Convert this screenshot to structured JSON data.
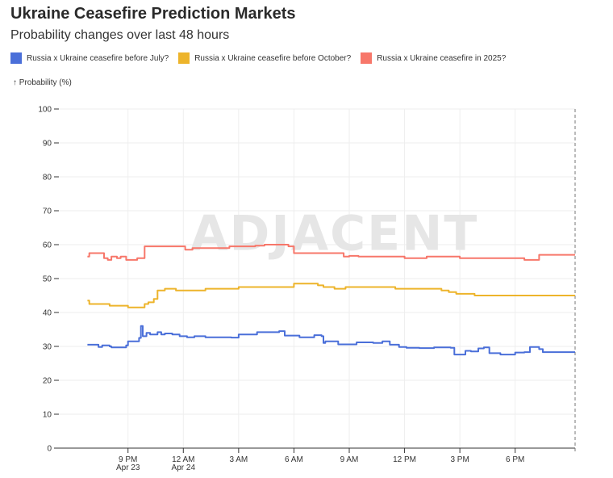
{
  "header": {
    "title": "Ukraine Ceasefire Prediction Markets",
    "subtitle": "Probability changes over last 48 hours"
  },
  "colors": {
    "series_0": "#4a6fd9",
    "series_1": "#edb42b",
    "series_2": "#f7776a",
    "watermark": "#e6e6e6",
    "grid": "#eeeeee"
  },
  "chart_data": {
    "type": "line",
    "title": "Ukraine Ceasefire Prediction Markets",
    "subtitle": "Probability changes over last 48 hours",
    "ylabel": "↑ Probability (%)",
    "xlabel": "",
    "ylim": [
      0,
      100
    ],
    "y_ticks": [
      0,
      10,
      20,
      30,
      40,
      50,
      60,
      70,
      80,
      90,
      100
    ],
    "x_unit": "hours since 9 PM Apr 23",
    "xlim": [
      -3.75,
      24.25
    ],
    "x_ticks": [
      {
        "x": 0,
        "label": "9 PM",
        "sublabel": "Apr 23"
      },
      {
        "x": 3,
        "label": "12 AM",
        "sublabel": "Apr 24"
      },
      {
        "x": 6,
        "label": "3 AM",
        "sublabel": ""
      },
      {
        "x": 9,
        "label": "6 AM",
        "sublabel": ""
      },
      {
        "x": 12,
        "label": "9 AM",
        "sublabel": ""
      },
      {
        "x": 15,
        "label": "12 PM",
        "sublabel": ""
      },
      {
        "x": 18,
        "label": "3 PM",
        "sublabel": ""
      },
      {
        "x": 21,
        "label": "6 PM",
        "sublabel": ""
      }
    ],
    "watermark": "ADJACENT",
    "legend_position": "top-left",
    "series": [
      {
        "name": "Russia x Ukraine ceasefire before July?",
        "color": "#4a6fd9",
        "points": [
          [
            -2.2,
            30.5
          ],
          [
            -1.6,
            29.8
          ],
          [
            -1.4,
            30.3
          ],
          [
            -1.0,
            30.0
          ],
          [
            -0.9,
            29.7
          ],
          [
            -0.1,
            30.3
          ],
          [
            0.0,
            31.5
          ],
          [
            0.3,
            31.5
          ],
          [
            0.6,
            32.5
          ],
          [
            0.7,
            36.0
          ],
          [
            0.8,
            33.0
          ],
          [
            1.0,
            34.0
          ],
          [
            1.2,
            33.5
          ],
          [
            1.6,
            34.2
          ],
          [
            1.8,
            33.5
          ],
          [
            2.0,
            33.8
          ],
          [
            2.4,
            33.5
          ],
          [
            2.8,
            33.0
          ],
          [
            3.2,
            32.7
          ],
          [
            3.6,
            33.0
          ],
          [
            4.2,
            32.7
          ],
          [
            5.6,
            32.6
          ],
          [
            6.0,
            33.5
          ],
          [
            6.5,
            33.5
          ],
          [
            7.0,
            34.2
          ],
          [
            8.2,
            34.5
          ],
          [
            8.5,
            33.2
          ],
          [
            9.3,
            32.7
          ],
          [
            10.1,
            33.3
          ],
          [
            10.5,
            33.0
          ],
          [
            10.6,
            31.0
          ],
          [
            10.7,
            31.5
          ],
          [
            11.4,
            30.6
          ],
          [
            12.2,
            30.6
          ],
          [
            12.4,
            31.2
          ],
          [
            13.3,
            31.0
          ],
          [
            13.8,
            31.5
          ],
          [
            14.2,
            30.5
          ],
          [
            14.7,
            29.8
          ],
          [
            15.1,
            29.6
          ],
          [
            15.8,
            29.5
          ],
          [
            16.6,
            29.7
          ],
          [
            17.5,
            29.6
          ],
          [
            17.7,
            27.6
          ],
          [
            18.3,
            28.7
          ],
          [
            18.6,
            28.5
          ],
          [
            19.0,
            29.4
          ],
          [
            19.3,
            29.7
          ],
          [
            19.6,
            28.0
          ],
          [
            20.2,
            27.6
          ],
          [
            21.0,
            28.2
          ],
          [
            21.5,
            28.3
          ],
          [
            21.8,
            29.8
          ],
          [
            22.3,
            29.2
          ],
          [
            22.5,
            28.3
          ]
        ]
      },
      {
        "name": "Russia x Ukraine ceasefire before October?",
        "color": "#edb42b",
        "points": [
          [
            -2.2,
            43.5
          ],
          [
            -2.1,
            42.5
          ],
          [
            -1.2,
            42.5
          ],
          [
            -1.0,
            42.0
          ],
          [
            -0.1,
            42.0
          ],
          [
            0.0,
            41.5
          ],
          [
            0.5,
            41.5
          ],
          [
            0.9,
            42.5
          ],
          [
            1.1,
            43.0
          ],
          [
            1.4,
            44.0
          ],
          [
            1.6,
            46.5
          ],
          [
            2.0,
            47.0
          ],
          [
            2.6,
            46.5
          ],
          [
            4.2,
            47.0
          ],
          [
            5.5,
            47.0
          ],
          [
            6.0,
            47.5
          ],
          [
            7.0,
            47.5
          ],
          [
            8.7,
            47.5
          ],
          [
            9.0,
            48.5
          ],
          [
            9.6,
            48.5
          ],
          [
            10.0,
            48.5
          ],
          [
            10.3,
            48.0
          ],
          [
            10.6,
            47.5
          ],
          [
            11.2,
            47.0
          ],
          [
            11.8,
            47.5
          ],
          [
            13.5,
            47.5
          ],
          [
            14.5,
            47.0
          ],
          [
            16.0,
            47.0
          ],
          [
            16.6,
            47.0
          ],
          [
            17.0,
            46.5
          ],
          [
            17.4,
            46.0
          ],
          [
            17.8,
            45.5
          ],
          [
            18.5,
            45.5
          ],
          [
            18.8,
            45.0
          ],
          [
            20.0,
            45.0
          ],
          [
            22.5,
            45.0
          ]
        ]
      },
      {
        "name": "Russia x Ukraine ceasefire in 2025?",
        "color": "#f7776a",
        "points": [
          [
            -2.2,
            56.5
          ],
          [
            -2.1,
            57.5
          ],
          [
            -1.4,
            57.5
          ],
          [
            -1.3,
            56.0
          ],
          [
            -1.1,
            55.5
          ],
          [
            -0.9,
            56.5
          ],
          [
            -0.6,
            56.0
          ],
          [
            -0.4,
            56.5
          ],
          [
            -0.1,
            55.5
          ],
          [
            0.2,
            55.5
          ],
          [
            0.5,
            56.0
          ],
          [
            0.7,
            56.0
          ],
          [
            0.9,
            59.5
          ],
          [
            1.2,
            59.5
          ],
          [
            1.5,
            59.5
          ],
          [
            2.8,
            59.5
          ],
          [
            3.1,
            58.5
          ],
          [
            3.5,
            59.0
          ],
          [
            4.4,
            59.0
          ],
          [
            5.2,
            59.0
          ],
          [
            5.5,
            59.5
          ],
          [
            6.6,
            59.5
          ],
          [
            6.9,
            59.7
          ],
          [
            7.4,
            60.0
          ],
          [
            8.4,
            60.0
          ],
          [
            8.7,
            59.5
          ],
          [
            9.0,
            57.5
          ],
          [
            10.4,
            57.5
          ],
          [
            11.5,
            57.5
          ],
          [
            11.7,
            56.5
          ],
          [
            12.0,
            56.7
          ],
          [
            12.5,
            56.5
          ],
          [
            13.2,
            56.5
          ],
          [
            14.0,
            56.5
          ],
          [
            14.7,
            56.5
          ],
          [
            15.0,
            56.0
          ],
          [
            15.8,
            56.0
          ],
          [
            16.2,
            56.5
          ],
          [
            17.0,
            56.5
          ],
          [
            17.8,
            56.5
          ],
          [
            18.0,
            56.0
          ],
          [
            20.0,
            56.0
          ],
          [
            21.5,
            55.5
          ],
          [
            22.2,
            55.5
          ],
          [
            22.3,
            57.0
          ],
          [
            22.5,
            57.0
          ]
        ]
      }
    ]
  }
}
